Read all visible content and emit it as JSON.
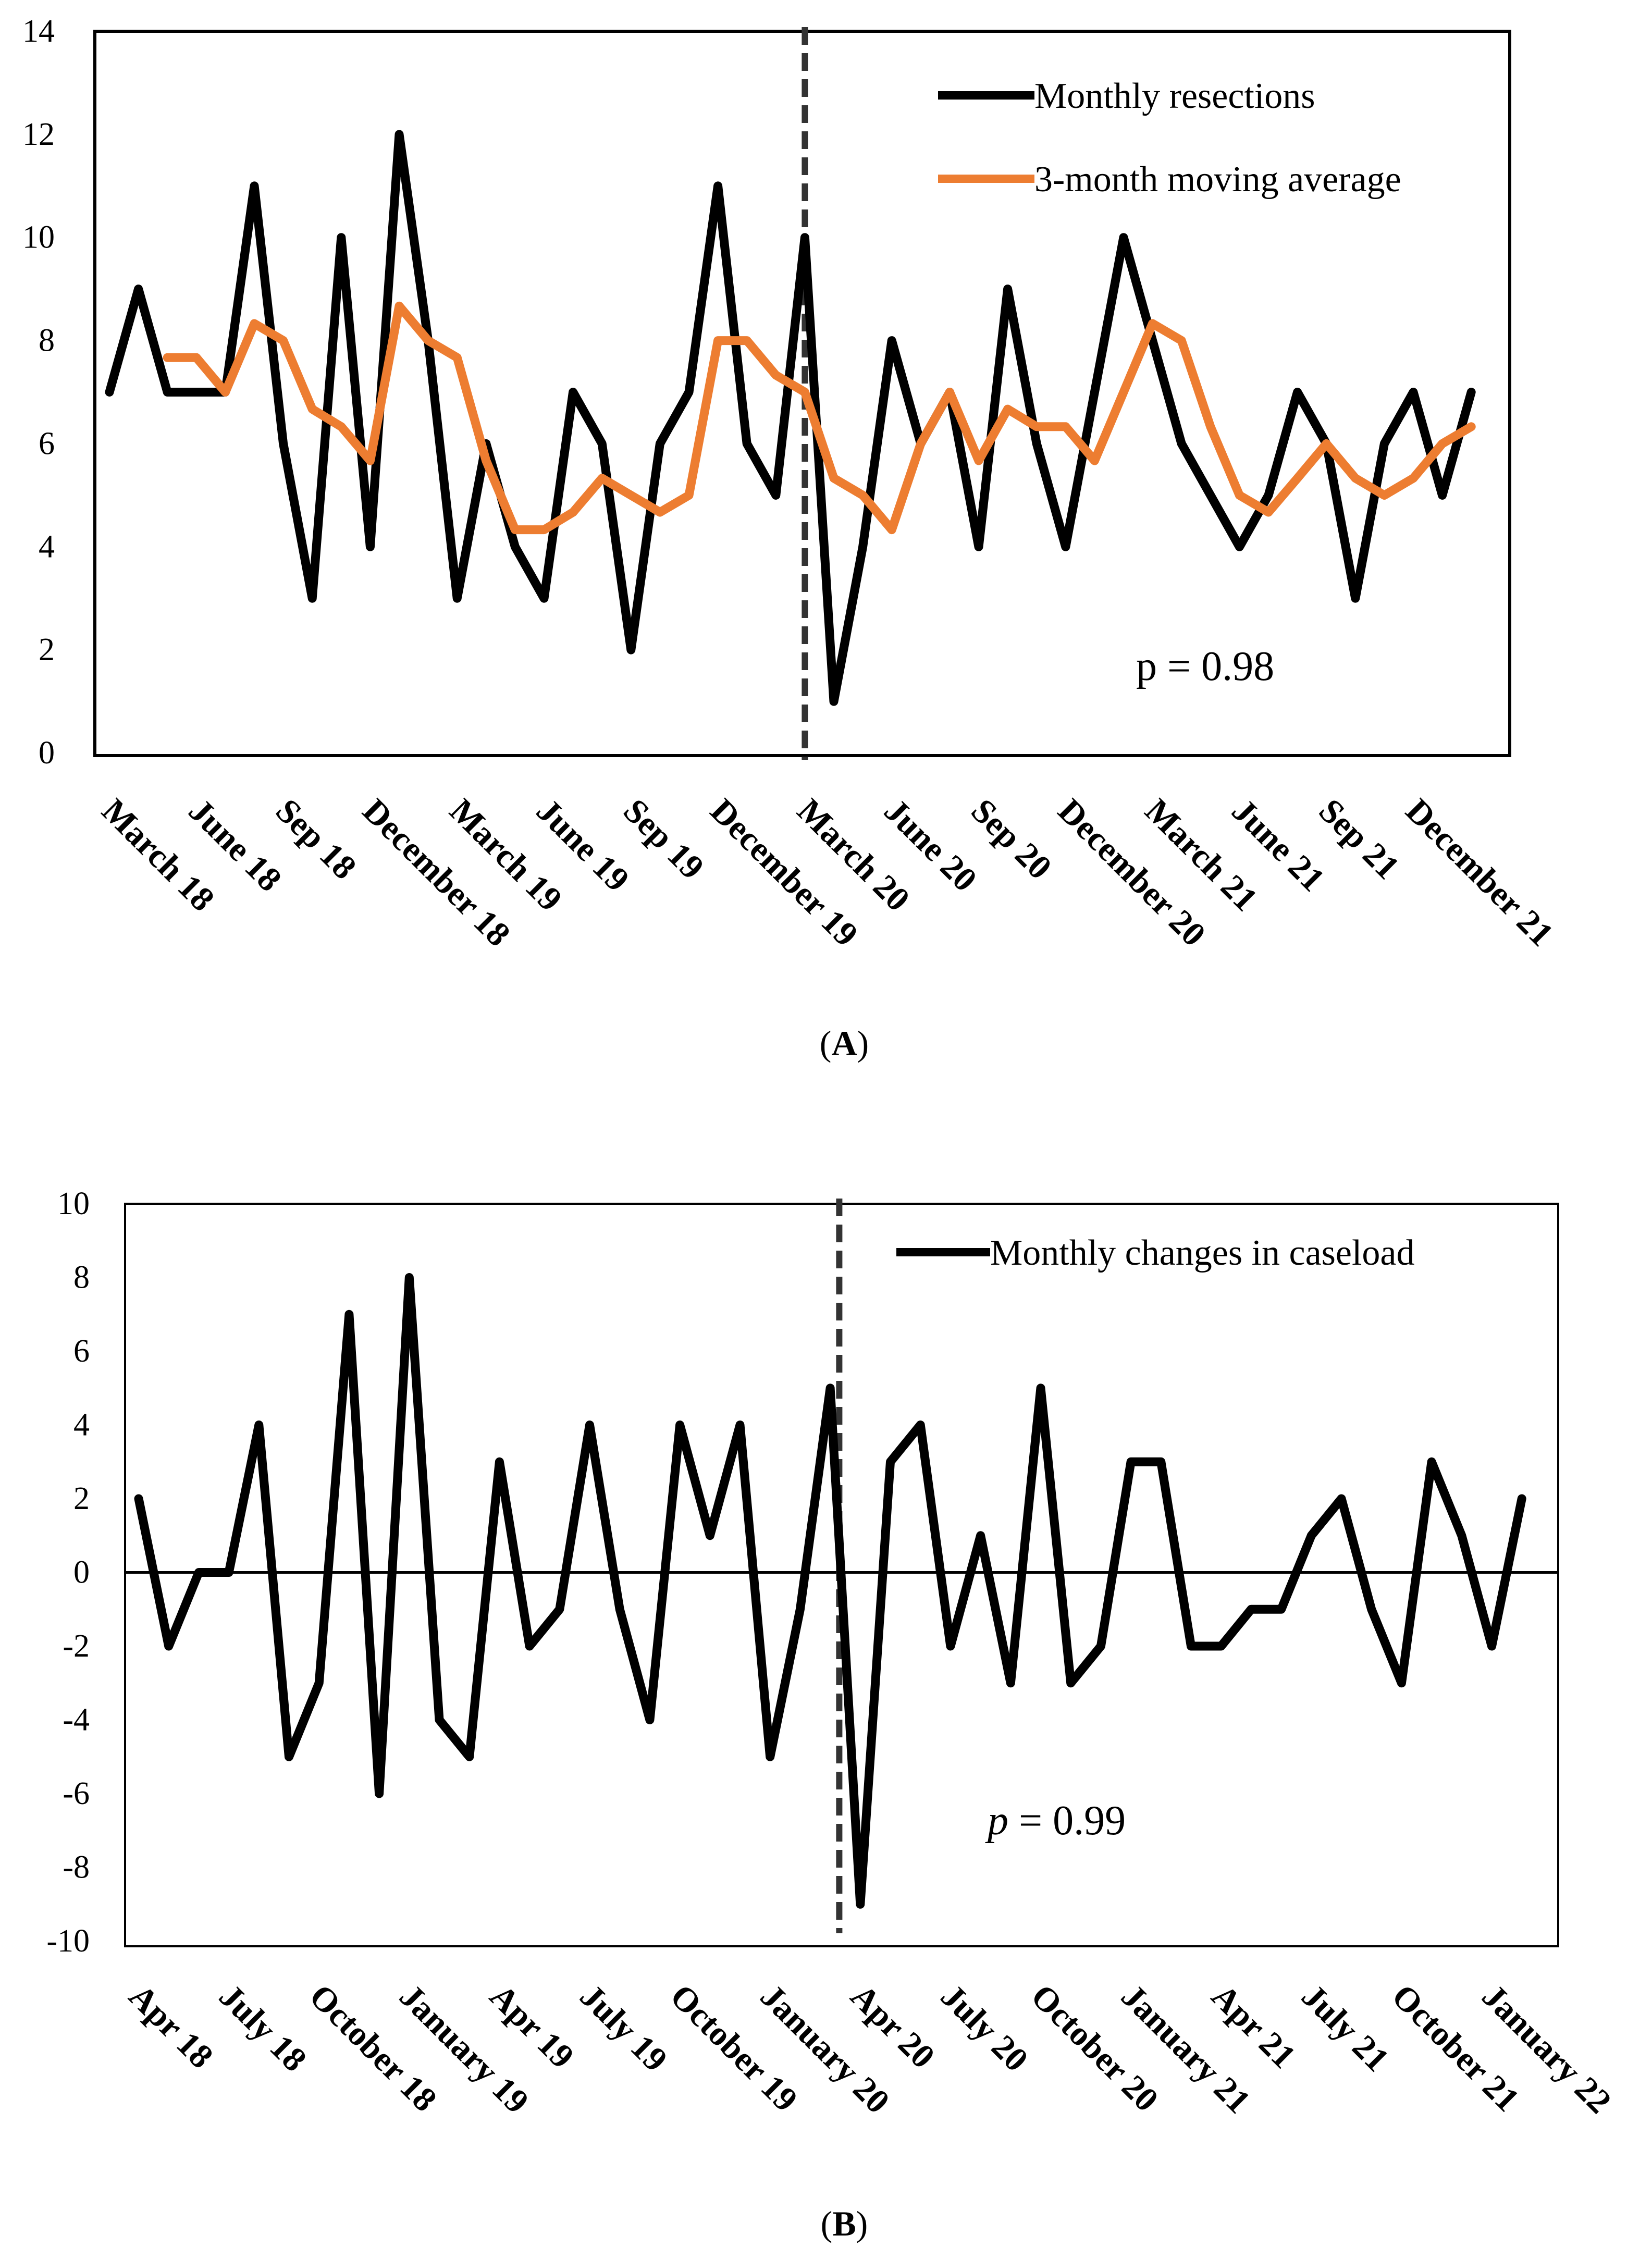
{
  "chart_data": [
    {
      "panel": "A",
      "type": "line",
      "caption_open": "(",
      "caption_label": "A",
      "caption_close": ")",
      "ylim": [
        0,
        14
      ],
      "yticks": [
        "0",
        "2",
        "4",
        "6",
        "8",
        "10",
        "12",
        "14"
      ],
      "x_tick_labels": [
        "March 18",
        "June 18",
        "Sep 18",
        "December 18",
        "March 19",
        "June 19",
        "Sep 19",
        "December 19",
        "March 20",
        "June 20",
        "Sep 20",
        "December 20",
        "March 21",
        "June 21",
        "Sep 21",
        "December 21"
      ],
      "x_months": [
        "Mar 18",
        "Apr 18",
        "May 18",
        "Jun 18",
        "Jul 18",
        "Aug 18",
        "Sep 18",
        "Oct 18",
        "Nov 18",
        "Dec 18",
        "Jan 19",
        "Feb 19",
        "Mar 19",
        "Apr 19",
        "May 19",
        "Jun 19",
        "Jul 19",
        "Aug 19",
        "Sep 19",
        "Oct 19",
        "Nov 19",
        "Dec 19",
        "Jan 20",
        "Feb 20",
        "Mar 20",
        "Apr 20",
        "May 20",
        "Jun 20",
        "Jul 20",
        "Aug 20",
        "Sep 20",
        "Oct 20",
        "Nov 20",
        "Dec 20",
        "Jan 21",
        "Feb 21",
        "Mar 21",
        "Apr 21",
        "May 21",
        "Jun 21",
        "Jul 21",
        "Aug 21",
        "Sep 21",
        "Oct 21",
        "Nov 21",
        "Dec 21",
        "Jan 22",
        "Feb 22"
      ],
      "intervention_index": 24,
      "series": [
        {
          "name": "Monthly resections",
          "color": "#000000",
          "values": [
            7,
            9,
            7,
            7,
            7,
            11,
            6,
            3,
            10,
            4,
            12,
            8,
            3,
            6,
            4,
            3,
            7,
            6,
            2,
            6,
            7,
            11,
            6,
            5,
            10,
            1,
            4,
            8,
            6,
            7,
            4,
            9,
            6,
            4,
            7,
            10,
            8,
            6,
            5,
            4,
            5,
            7,
            6,
            3,
            6,
            7,
            5,
            7
          ]
        },
        {
          "name": "3-month moving average",
          "color": "#ED7D31",
          "values": [
            null,
            null,
            7.67,
            7.67,
            7.0,
            8.33,
            8.0,
            6.67,
            6.33,
            5.67,
            8.67,
            8.0,
            7.67,
            5.67,
            4.33,
            4.33,
            4.67,
            5.33,
            5.0,
            4.67,
            5.0,
            8.0,
            8.0,
            7.33,
            7.0,
            5.33,
            5.0,
            4.33,
            6.0,
            7.0,
            5.67,
            6.67,
            6.33,
            6.33,
            5.67,
            7.0,
            8.33,
            8.0,
            6.33,
            5.0,
            4.67,
            5.33,
            6.0,
            5.33,
            5.0,
            5.33,
            6.0,
            6.33
          ]
        }
      ],
      "annotation": "p = 0.98"
    },
    {
      "panel": "B",
      "type": "line",
      "caption_open": "(",
      "caption_label": "B",
      "caption_close": ")",
      "ylim": [
        -10,
        10
      ],
      "yticks": [
        "-10",
        "-8",
        "-6",
        "-4",
        "-2",
        "0",
        "2",
        "4",
        "6",
        "8",
        "10"
      ],
      "x_tick_labels": [
        "Apr 18",
        "July 18",
        "October 18",
        "January 19",
        "Apr 19",
        "July 19",
        "October 19",
        "January 20",
        "Apr 20",
        "July 20",
        "October 20",
        "January 21",
        "Apr 21",
        "July 21",
        "October 21",
        "January 22"
      ],
      "x_months": [
        "Apr 18",
        "May 18",
        "Jun 18",
        "Jul 18",
        "Aug 18",
        "Sep 18",
        "Oct 18",
        "Nov 18",
        "Dec 18",
        "Jan 19",
        "Feb 19",
        "Mar 19",
        "Apr 19",
        "May 19",
        "Jun 19",
        "Jul 19",
        "Aug 19",
        "Sep 19",
        "Oct 19",
        "Nov 19",
        "Dec 19",
        "Jan 20",
        "Feb 20",
        "Mar 20",
        "Apr 20",
        "May 20",
        "Jun 20",
        "Jul 20",
        "Aug 20",
        "Sep 20",
        "Oct 20",
        "Nov 20",
        "Dec 20",
        "Jan 21",
        "Feb 21",
        "Mar 21",
        "Apr 21",
        "May 21",
        "Jun 21",
        "Jul 21",
        "Aug 21",
        "Sep 21",
        "Oct 21",
        "Nov 21",
        "Dec 21",
        "Jan 22",
        "Feb 22"
      ],
      "intervention_index": 23.3,
      "series": [
        {
          "name": "Monthly changes in caseload",
          "color": "#000000",
          "values": [
            2,
            -2,
            0,
            0,
            4,
            -5,
            -3,
            7,
            -6,
            8,
            -4,
            -5,
            3,
            -2,
            -1,
            4,
            -1,
            -4,
            4,
            1,
            4,
            -5,
            -1,
            5,
            -9,
            3,
            4,
            -2,
            1,
            -3,
            5,
            -3,
            -2,
            3,
            3,
            -2,
            -2,
            -1,
            -1,
            1,
            2,
            -1,
            -3,
            3,
            1,
            -2,
            2
          ]
        }
      ],
      "annotation_p": "p",
      "annotation_rest": " = 0.99"
    }
  ]
}
